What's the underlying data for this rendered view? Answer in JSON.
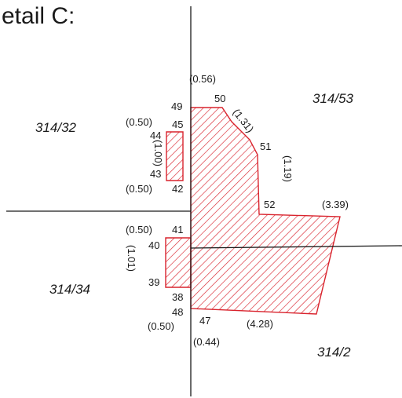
{
  "title": "etail C:",
  "parcels": {
    "p_314_53": "314/53",
    "p_314_32": "314/32",
    "p_314_34": "314/34",
    "p_314_2": "314/2"
  },
  "points": {
    "p38": "38",
    "p39": "39",
    "p40": "40",
    "p41": "41",
    "p42": "42",
    "p43": "43",
    "p44": "44",
    "p45": "45",
    "p47": "47",
    "p48": "48",
    "p49": "49",
    "p50": "50",
    "p51": "51",
    "p52": "52"
  },
  "dimensions": {
    "d056": "(0.56)",
    "d050a": "(0.50)",
    "d100": "(1.00)",
    "d050b": "(0.50)",
    "d131": "(1.31)",
    "d119": "(1.19)",
    "d339": "(3.39)",
    "d050c": "(0.50)",
    "d101": "(1.01)",
    "d050d": "(0.50)",
    "d044": "(0.44)",
    "d428": "(4.28)"
  },
  "colors": {
    "hatch": "#d9232d",
    "lines": "#1a1a1a"
  }
}
